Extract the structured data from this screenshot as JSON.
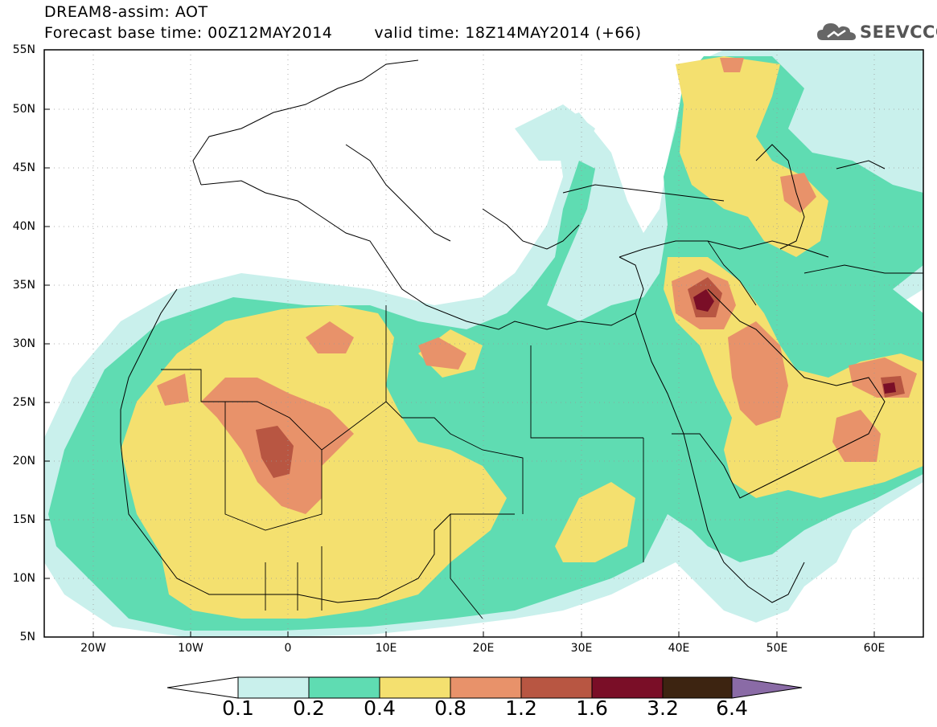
{
  "header": {
    "line1": "DREAM8-assim: AOT",
    "base_time": "Forecast base time: 00Z12MAY2014",
    "valid_time": "valid time: 18Z14MAY2014 (+66)",
    "logo_text": "SEEVCCC",
    "logo_icon": "cloud-icon"
  },
  "axes": {
    "lat_labels": [
      "55N",
      "50N",
      "45N",
      "40N",
      "35N",
      "30N",
      "25N",
      "20N",
      "15N",
      "10N",
      "5N"
    ],
    "lon_labels": [
      "20W",
      "10W",
      "0",
      "10E",
      "20E",
      "30E",
      "40E",
      "50E",
      "60E"
    ]
  },
  "legend": {
    "labels": [
      "0.1",
      "0.2",
      "0.4",
      "0.8",
      "1.2",
      "1.6",
      "3.2",
      "6.4"
    ],
    "colors": [
      "#ffffff",
      "#c9f0ec",
      "#5fdcb2",
      "#f4e06f",
      "#e8926a",
      "#b85642",
      "#7a0e27",
      "#3d2411",
      "#8a6ba6"
    ]
  },
  "colors": {
    "aot_0_1": "#c9f0ec",
    "aot_0_2": "#5fdcb2",
    "aot_0_4": "#f4e06f",
    "aot_0_8": "#e8926a",
    "aot_1_2": "#b85642",
    "aot_1_6": "#7a0e27"
  }
}
